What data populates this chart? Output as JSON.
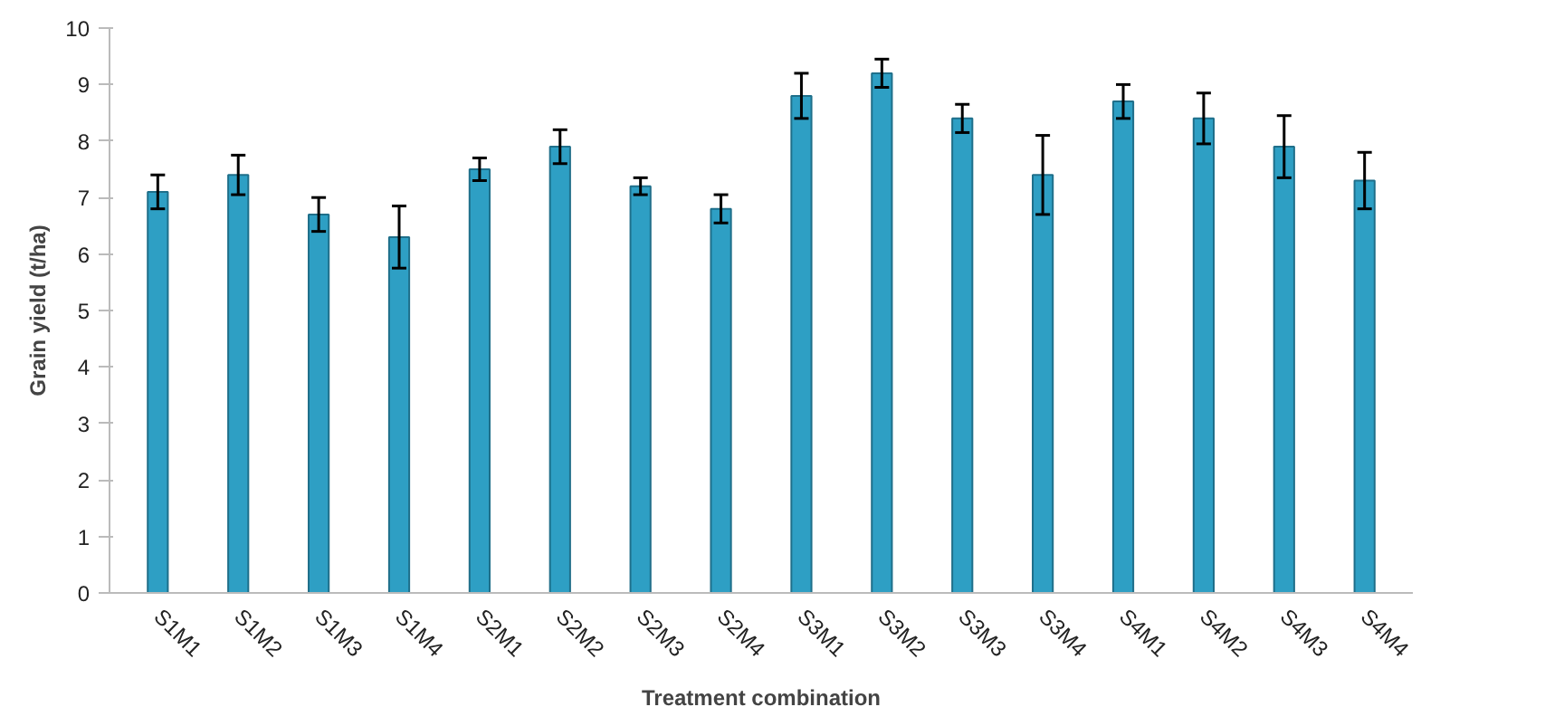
{
  "chart_data": {
    "type": "bar",
    "xlabel": "Treatment combination",
    "ylabel": "Grain yield (t/ha)",
    "categories": [
      "S1M1",
      "S1M2",
      "S1M3",
      "S1M4",
      "S2M1",
      "S2M2",
      "S2M3",
      "S2M4",
      "S3M1",
      "S3M2",
      "S3M3",
      "S3M4",
      "S4M1",
      "S4M2",
      "S4M3",
      "S4M4"
    ],
    "values": [
      7.1,
      7.4,
      6.7,
      6.3,
      7.5,
      7.9,
      7.2,
      6.8,
      8.8,
      9.2,
      8.4,
      7.4,
      8.7,
      8.4,
      7.9,
      7.3
    ],
    "errors": [
      0.3,
      0.35,
      0.3,
      0.55,
      0.2,
      0.3,
      0.15,
      0.25,
      0.4,
      0.25,
      0.25,
      0.7,
      0.3,
      0.45,
      0.55,
      0.5
    ],
    "color": "#2e9fc4",
    "ylim": [
      0,
      10
    ],
    "yticks": [
      0,
      1,
      2,
      3,
      4,
      5,
      6,
      7,
      8,
      9,
      10
    ],
    "grid": false
  }
}
